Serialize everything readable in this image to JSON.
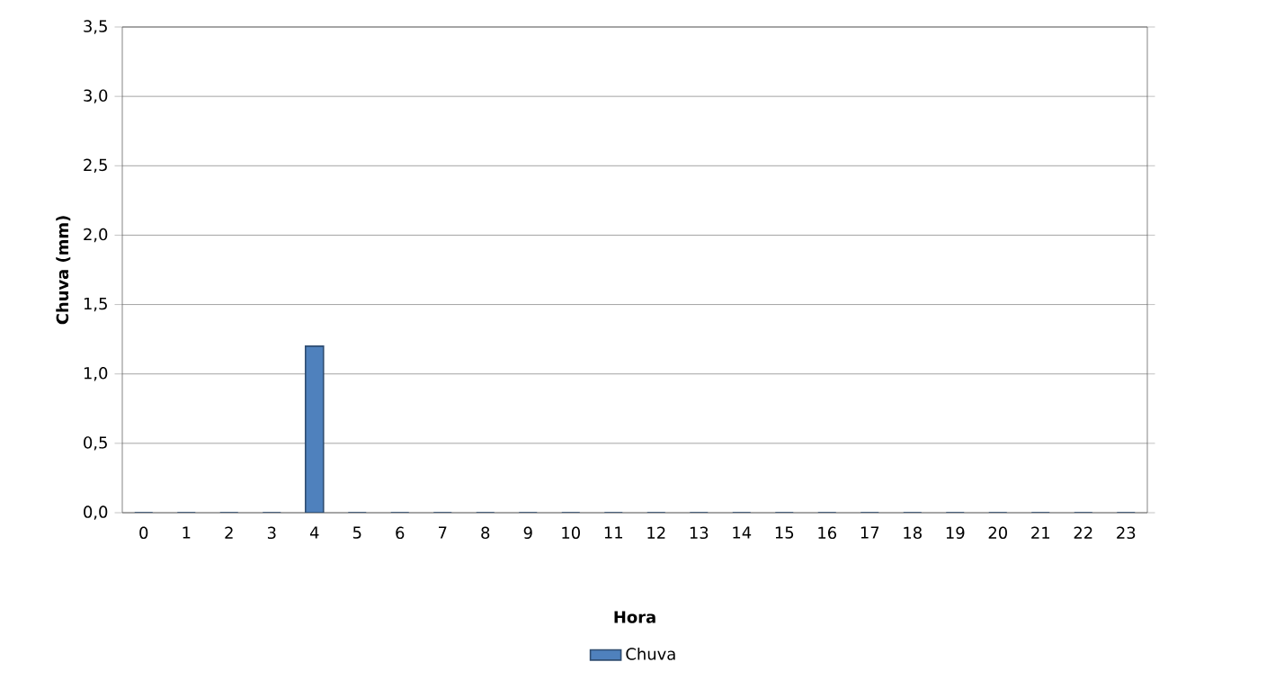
{
  "chart_data": {
    "type": "bar",
    "xlabel": "Hora",
    "ylabel": "Chuva (mm)",
    "categories": [
      "0",
      "1",
      "2",
      "3",
      "4",
      "5",
      "6",
      "7",
      "8",
      "9",
      "10",
      "11",
      "12",
      "13",
      "14",
      "15",
      "16",
      "17",
      "18",
      "19",
      "20",
      "21",
      "22",
      "23"
    ],
    "series": [
      {
        "name": "Chuva",
        "color": "#4f81bd",
        "values": [
          0,
          0,
          0,
          0,
          1.2,
          0,
          0,
          0,
          0,
          0,
          0,
          0,
          0,
          0,
          0,
          0,
          0,
          0,
          0,
          0,
          0,
          0,
          0,
          0
        ]
      }
    ],
    "ylim": [
      0,
      3.5
    ],
    "yticks": [
      {
        "value": 0,
        "label": "0,0"
      },
      {
        "value": 0.5,
        "label": "0,5"
      },
      {
        "value": 1,
        "label": "1,0"
      },
      {
        "value": 1.5,
        "label": "1,5"
      },
      {
        "value": 2,
        "label": "2,0"
      },
      {
        "value": 2.5,
        "label": "2,5"
      },
      {
        "value": 3,
        "label": "3,0"
      },
      {
        "value": 3.5,
        "label": "3,5"
      }
    ],
    "grid": "y",
    "legend": "bottom"
  }
}
